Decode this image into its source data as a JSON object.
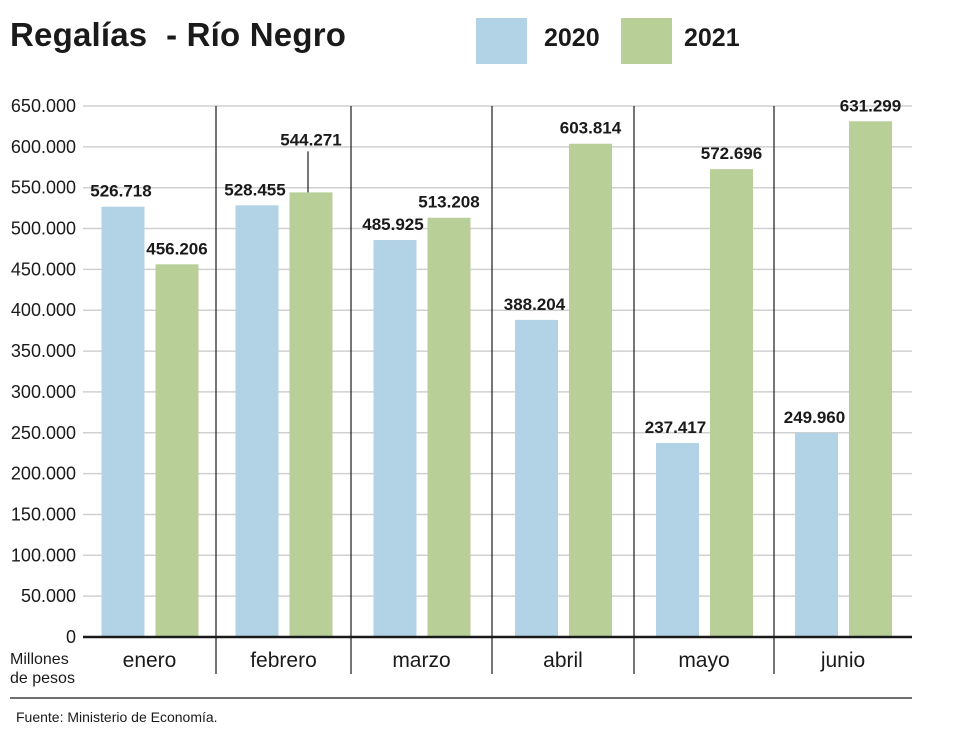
{
  "chart_data": {
    "type": "bar",
    "title": "Regalías  - Río Negro",
    "categories": [
      "enero",
      "febrero",
      "marzo",
      "abril",
      "mayo",
      "junio"
    ],
    "series": [
      {
        "name": "2020",
        "color": "#b1d3e5",
        "values": [
          526718,
          528455,
          485925,
          388204,
          237417,
          249960
        ],
        "labels": [
          "526.718",
          "528.455",
          "485.925",
          "388.204",
          "237.417",
          "249.960"
        ]
      },
      {
        "name": "2021",
        "color": "#b8cf98",
        "values": [
          456206,
          544271,
          513208,
          603814,
          572696,
          631299
        ],
        "labels": [
          "456.206",
          "544.271",
          "513.208",
          "603.814",
          "572.696",
          "631.299"
        ]
      }
    ],
    "ylim": [
      0,
      650000
    ],
    "yticks": [
      0,
      50000,
      100000,
      150000,
      200000,
      250000,
      300000,
      350000,
      400000,
      450000,
      500000,
      550000,
      600000,
      650000
    ],
    "ytick_labels": [
      "0",
      "50.000",
      "100.000",
      "150.000",
      "200.000",
      "250.000",
      "300.000",
      "350.000",
      "400.000",
      "450.000",
      "500.000",
      "550.000",
      "600.000",
      "650.000"
    ],
    "ylabel": "Millones de pesos",
    "ylabel_lines": [
      "Millones",
      "de pesos"
    ],
    "xlabel": "",
    "grid": true,
    "legend": "top-right",
    "source": "Fuente: Ministerio de Economía."
  }
}
